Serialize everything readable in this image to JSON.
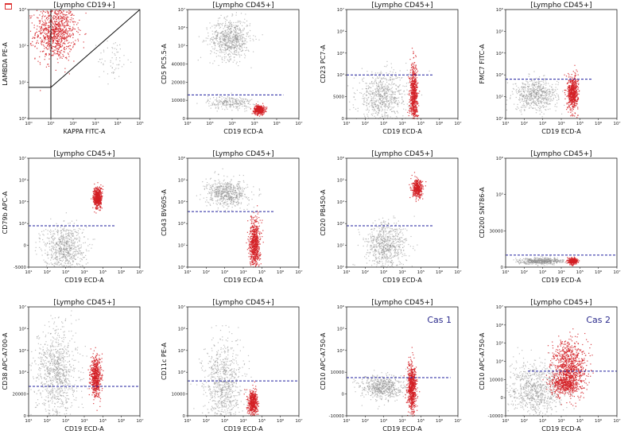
{
  "colors": {
    "gated": "#d41e24",
    "ungated": "#8c8c8c",
    "threshold": "#1d1d9e",
    "frame": "#222222"
  },
  "chart_data": [
    {
      "type": "scatter",
      "title": "[Lympho CD19+]",
      "xlabel": "KAPPA FITC-A",
      "ylabel": "LAMBDA PE-A",
      "x_ticks": [
        "10⁰",
        "10¹",
        "10²",
        "10³",
        "10⁴",
        "10⁵"
      ],
      "y_ticks": [
        "10⁰",
        "10¹",
        "10²",
        "10³"
      ],
      "xlim": [
        0,
        5
      ],
      "ylim": [
        0,
        3.5
      ],
      "clusters": [
        {
          "color": "gated",
          "cx": 1.2,
          "cy": 2.8,
          "sx": 0.45,
          "sy": 0.45,
          "n": 900
        },
        {
          "color": "ungated",
          "cx": 3.8,
          "cy": 1.9,
          "sx": 0.35,
          "sy": 0.35,
          "n": 60
        }
      ],
      "gates": [
        {
          "kind": "line",
          "x1": 1,
          "y1": 1,
          "x2": 5,
          "y2": 3.5
        },
        {
          "kind": "line",
          "x1": 0,
          "y1": 1,
          "x2": 1,
          "y2": 1
        },
        {
          "kind": "line",
          "x1": 1,
          "y1": 0,
          "x2": 1,
          "y2": 3.5
        }
      ],
      "cas": ""
    },
    {
      "type": "scatter",
      "title": "[Lympho CD45+]",
      "xlabel": "CD19 ECD-A",
      "ylabel": "CD5 PC5.5-A",
      "x_ticks": [
        "10²",
        "10³",
        "10⁴",
        "10⁵",
        "10⁶",
        "10⁷"
      ],
      "y_ticks": [
        "0",
        "10000",
        "20000",
        "40000",
        "10⁵",
        "10⁶",
        "10⁷"
      ],
      "xlim": [
        0,
        5
      ],
      "ylim": [
        0,
        6
      ],
      "clusters": [
        {
          "color": "ungated",
          "cx": 1.9,
          "cy": 4.4,
          "sx": 0.45,
          "sy": 0.55,
          "n": 700
        },
        {
          "color": "ungated",
          "cx": 1.9,
          "cy": 0.9,
          "sx": 0.5,
          "sy": 0.18,
          "n": 250
        },
        {
          "color": "gated",
          "cx": 3.2,
          "cy": 0.5,
          "sx": 0.12,
          "sy": 0.12,
          "n": 400
        }
      ],
      "threshold_y": 1.3,
      "threshold_x": [
        0,
        4.3
      ],
      "cas": ""
    },
    {
      "type": "scatter",
      "title": "[Lympho CD45+]",
      "xlabel": "CD19 ECD-A",
      "ylabel": "CD23 PC7-A",
      "x_ticks": [
        "10¹",
        "10²",
        "10³",
        "10⁴",
        "10⁵",
        "10⁶",
        "10⁷"
      ],
      "y_ticks": [
        "0",
        "5000",
        "10⁴",
        "10⁵",
        "10⁶",
        "10⁷"
      ],
      "xlim": [
        0,
        6
      ],
      "ylim": [
        0,
        5
      ],
      "clusters": [
        {
          "color": "ungated",
          "cx": 1.9,
          "cy": 1.0,
          "sx": 0.7,
          "sy": 0.55,
          "n": 700
        },
        {
          "color": "gated",
          "cx": 3.6,
          "cy": 1.0,
          "sx": 0.1,
          "sy": 0.75,
          "n": 700
        }
      ],
      "threshold_y": 2.0,
      "threshold_x": [
        0,
        4.7
      ],
      "cas": ""
    },
    {
      "type": "scatter",
      "title": "[Lympho CD45+]",
      "xlabel": "CD19 ECD-A",
      "ylabel": "FMC7 FITC-A",
      "x_ticks": [
        "10¹",
        "10²",
        "10³",
        "10⁴",
        "10⁵",
        "10⁶",
        "10⁷"
      ],
      "y_ticks": [
        "10¹",
        "10²",
        "10³",
        "10⁴",
        "10⁵",
        "10⁶"
      ],
      "xlim": [
        0,
        6
      ],
      "ylim": [
        0,
        5
      ],
      "clusters": [
        {
          "color": "ungated",
          "cx": 1.6,
          "cy": 1.1,
          "sx": 0.6,
          "sy": 0.35,
          "n": 600
        },
        {
          "color": "gated",
          "cx": 3.6,
          "cy": 1.2,
          "sx": 0.14,
          "sy": 0.38,
          "n": 600
        }
      ],
      "threshold_y": 1.8,
      "threshold_x": [
        0,
        4.7
      ],
      "cas": ""
    },
    {
      "type": "scatter",
      "title": "[Lympho CD45+]",
      "xlabel": "CD19 ECD-A",
      "ylabel": "CD79b APC-A",
      "x_ticks": [
        "10¹",
        "10²",
        "10³",
        "10⁴",
        "10⁵",
        "10⁶",
        "10⁷"
      ],
      "y_ticks": [
        "-5000",
        "0",
        "10⁴",
        "10⁵",
        "10⁶",
        "10⁷"
      ],
      "xlim": [
        0,
        6
      ],
      "ylim": [
        0,
        5
      ],
      "clusters": [
        {
          "color": "ungated",
          "cx": 1.9,
          "cy": 0.9,
          "sx": 0.55,
          "sy": 0.55,
          "n": 700
        },
        {
          "color": "gated",
          "cx": 3.7,
          "cy": 3.2,
          "sx": 0.12,
          "sy": 0.25,
          "n": 500
        }
      ],
      "threshold_y": 1.9,
      "threshold_x": [
        0,
        4.7
      ],
      "cas": ""
    },
    {
      "type": "scatter",
      "title": "[Lympho CD45+]",
      "xlabel": "CD19 ECD-A",
      "ylabel": "CD43 BV605-A",
      "x_ticks": [
        "10¹",
        "10²",
        "10³",
        "10⁴",
        "10⁵",
        "10⁶",
        "10⁷"
      ],
      "y_ticks": [
        "10¹",
        "10²",
        "10³",
        "10⁴",
        "10⁵",
        "10⁶"
      ],
      "xlim": [
        0,
        6
      ],
      "ylim": [
        0,
        5
      ],
      "clusters": [
        {
          "color": "ungated",
          "cx": 2.1,
          "cy": 3.4,
          "sx": 0.55,
          "sy": 0.3,
          "n": 600
        },
        {
          "color": "gated",
          "cx": 3.6,
          "cy": 1.1,
          "sx": 0.14,
          "sy": 0.55,
          "n": 700
        }
      ],
      "threshold_y": 2.55,
      "threshold_x": [
        0,
        4.7
      ],
      "cas": ""
    },
    {
      "type": "scatter",
      "title": "[Lympho CD45+]",
      "xlabel": "CD19 ECD-A",
      "ylabel": "CD20 PB450-A",
      "x_ticks": [
        "10¹",
        "10²",
        "10³",
        "10⁴",
        "10⁵",
        "10⁶",
        "10⁷"
      ],
      "y_ticks": [
        "10¹",
        "10²",
        "10³",
        "10⁴",
        "10⁵",
        "10⁶"
      ],
      "xlim": [
        0,
        6
      ],
      "ylim": [
        0,
        5
      ],
      "clusters": [
        {
          "color": "ungated",
          "cx": 2.1,
          "cy": 1.0,
          "sx": 0.55,
          "sy": 0.55,
          "n": 700
        },
        {
          "color": "gated",
          "cx": 3.8,
          "cy": 3.6,
          "sx": 0.14,
          "sy": 0.2,
          "n": 400
        }
      ],
      "threshold_y": 1.9,
      "threshold_x": [
        0,
        4.7
      ],
      "cas": ""
    },
    {
      "type": "scatter",
      "title": "[Lympho CD45+]",
      "xlabel": "CD19 ECD-A",
      "ylabel": "CD200 SN786-A",
      "x_ticks": [
        "10¹",
        "10²",
        "10³",
        "10⁴",
        "10⁵",
        "10⁶",
        "10⁷"
      ],
      "y_ticks": [
        "0",
        "30000",
        "10⁵",
        "10⁶"
      ],
      "xlim": [
        0,
        6
      ],
      "ylim": [
        0,
        5
      ],
      "clusters": [
        {
          "color": "ungated",
          "cx": 1.9,
          "cy": 0.3,
          "sx": 0.6,
          "sy": 0.07,
          "n": 500
        },
        {
          "color": "gated",
          "cx": 3.6,
          "cy": 0.3,
          "sx": 0.12,
          "sy": 0.07,
          "n": 300
        }
      ],
      "threshold_y": 0.55,
      "threshold_x": [
        0,
        6
      ],
      "cas": ""
    },
    {
      "type": "scatter",
      "title": "[Lympho CD45+]",
      "xlabel": "CD19 ECD-A",
      "ylabel": "CD38 APC-A700-A",
      "x_ticks": [
        "10¹",
        "10²",
        "10³",
        "10⁴",
        "10⁵",
        "10⁶",
        "10⁷"
      ],
      "y_ticks": [
        "0",
        "20000",
        "10⁴",
        "10⁵",
        "10⁶",
        "10⁷"
      ],
      "xlim": [
        0,
        6
      ],
      "ylim": [
        0,
        5
      ],
      "clusters": [
        {
          "color": "ungated",
          "cx": 1.5,
          "cy": 2.0,
          "sx": 0.55,
          "sy": 1.1,
          "n": 900
        },
        {
          "color": "gated",
          "cx": 3.6,
          "cy": 1.8,
          "sx": 0.14,
          "sy": 0.45,
          "n": 600
        }
      ],
      "threshold_y": 1.35,
      "threshold_x": [
        0,
        6
      ],
      "cas": ""
    },
    {
      "type": "scatter",
      "title": "[Lympho CD45+]",
      "xlabel": "CD19 ECD-A",
      "ylabel": "CD11c PE-A",
      "x_ticks": [
        "10¹",
        "10²",
        "10³",
        "10⁴",
        "10⁵",
        "10⁶",
        "10⁷"
      ],
      "y_ticks": [
        "0",
        "10000",
        "10⁴",
        "10⁵",
        "10⁶",
        "10⁷"
      ],
      "xlim": [
        0,
        6
      ],
      "ylim": [
        0,
        5
      ],
      "clusters": [
        {
          "color": "ungated",
          "cx": 1.9,
          "cy": 1.4,
          "sx": 0.5,
          "sy": 1.0,
          "n": 800
        },
        {
          "color": "gated",
          "cx": 3.5,
          "cy": 0.6,
          "sx": 0.13,
          "sy": 0.3,
          "n": 500
        }
      ],
      "threshold_y": 1.6,
      "threshold_x": [
        0,
        6
      ],
      "cas": ""
    },
    {
      "type": "scatter",
      "title": "[Lympho CD45+]",
      "xlabel": "CD19 ECD-A",
      "ylabel": "CD10 APC-A750-A",
      "x_ticks": [
        "10¹",
        "10²",
        "10³",
        "10⁴",
        "10⁵",
        "10⁶",
        "10⁷"
      ],
      "y_ticks": [
        "-10000",
        "0",
        "10000",
        "10⁴",
        "10⁵",
        "10⁶"
      ],
      "xlim": [
        0,
        6
      ],
      "ylim": [
        0,
        5
      ],
      "clusters": [
        {
          "color": "ungated",
          "cx": 1.9,
          "cy": 1.3,
          "sx": 0.6,
          "sy": 0.28,
          "n": 600
        },
        {
          "color": "gated",
          "cx": 3.5,
          "cy": 1.3,
          "sx": 0.12,
          "sy": 0.55,
          "n": 700
        }
      ],
      "threshold_y": 1.75,
      "threshold_x": [
        0,
        5.6
      ],
      "cas": "Cas 1"
    },
    {
      "type": "scatter",
      "title": "[Lympho CD45+]",
      "xlabel": "CD19 ECD-A",
      "ylabel": "CD10 APC-A750-A",
      "x_ticks": [
        "10¹",
        "10²",
        "10³",
        "10⁴",
        "10⁵",
        "10⁶",
        "10⁷"
      ],
      "y_ticks": [
        "-10000",
        "0",
        "10000",
        "10⁴",
        "10⁵",
        "10⁶",
        "10⁷"
      ],
      "xlim": [
        0,
        6
      ],
      "ylim": [
        0,
        5
      ],
      "clusters": [
        {
          "color": "ungated",
          "cx": 1.6,
          "cy": 1.2,
          "sx": 0.75,
          "sy": 0.6,
          "n": 800
        },
        {
          "color": "gated",
          "cx": 3.4,
          "cy": 2.2,
          "sx": 0.45,
          "sy": 0.65,
          "n": 900
        },
        {
          "color": "gated",
          "cx": 3.2,
          "cy": 1.5,
          "sx": 0.4,
          "sy": 0.2,
          "n": 350
        }
      ],
      "threshold_y": 2.05,
      "threshold_x": [
        1.2,
        6
      ],
      "cas": "Cas 2"
    }
  ]
}
